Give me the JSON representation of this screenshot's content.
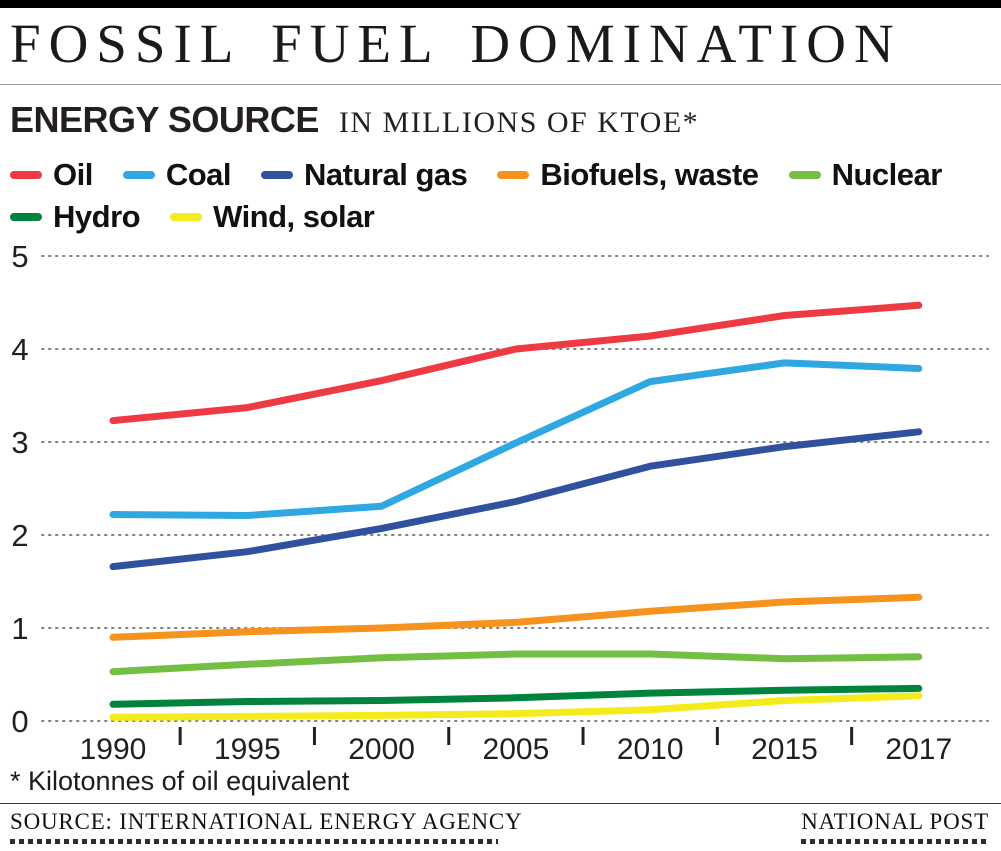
{
  "header": {
    "title": "FOSSIL FUEL DOMINATION"
  },
  "subtitle": {
    "label": "ENERGY SOURCE",
    "units": "IN MILLIONS OF KTOE*"
  },
  "chart_data": {
    "type": "line",
    "title": "ENERGY SOURCE IN MILLIONS OF KTOE*",
    "x": [
      1990,
      1995,
      2000,
      2005,
      2010,
      2015,
      2017
    ],
    "x_tick_labels": [
      "1990",
      "1995",
      "2000",
      "2005",
      "2010",
      "2015",
      "2017"
    ],
    "yticks": [
      0,
      1,
      2,
      3,
      4,
      5
    ],
    "ylim": [
      0,
      5
    ],
    "grid": "horizontal-dotted",
    "legend_position": "top",
    "gridline_color": "#808080",
    "axis_text_color": "#231f20",
    "series": [
      {
        "name": "Oil",
        "color": "#ee3a43",
        "values": [
          3.23,
          3.37,
          3.66,
          4.0,
          4.14,
          4.36,
          4.47
        ]
      },
      {
        "name": "Coal",
        "color": "#2fa8e1",
        "values": [
          2.22,
          2.21,
          2.31,
          2.99,
          3.65,
          3.85,
          3.79
        ]
      },
      {
        "name": "Natural gas",
        "color": "#31519f",
        "values": [
          1.66,
          1.82,
          2.07,
          2.36,
          2.74,
          2.95,
          3.11
        ]
      },
      {
        "name": "Biofuels, waste",
        "color": "#f6921e",
        "values": [
          0.9,
          0.96,
          1.0,
          1.06,
          1.18,
          1.28,
          1.33
        ]
      },
      {
        "name": "Nuclear",
        "color": "#72bf44",
        "values": [
          0.53,
          0.61,
          0.68,
          0.72,
          0.72,
          0.67,
          0.69
        ]
      },
      {
        "name": "Hydro",
        "color": "#00833d",
        "values": [
          0.18,
          0.21,
          0.22,
          0.25,
          0.3,
          0.33,
          0.35
        ]
      },
      {
        "name": "Wind, solar",
        "color": "#f3eb1c",
        "values": [
          0.04,
          0.05,
          0.06,
          0.08,
          0.12,
          0.22,
          0.27
        ]
      }
    ],
    "legend_rows": [
      [
        0,
        1,
        2,
        3,
        4
      ],
      [
        5,
        6
      ]
    ]
  },
  "footer": {
    "footnote": "* Kilotonnes of oil equivalent",
    "source": "SOURCE: INTERNATIONAL ENERGY AGENCY",
    "credit": "NATIONAL POST"
  }
}
